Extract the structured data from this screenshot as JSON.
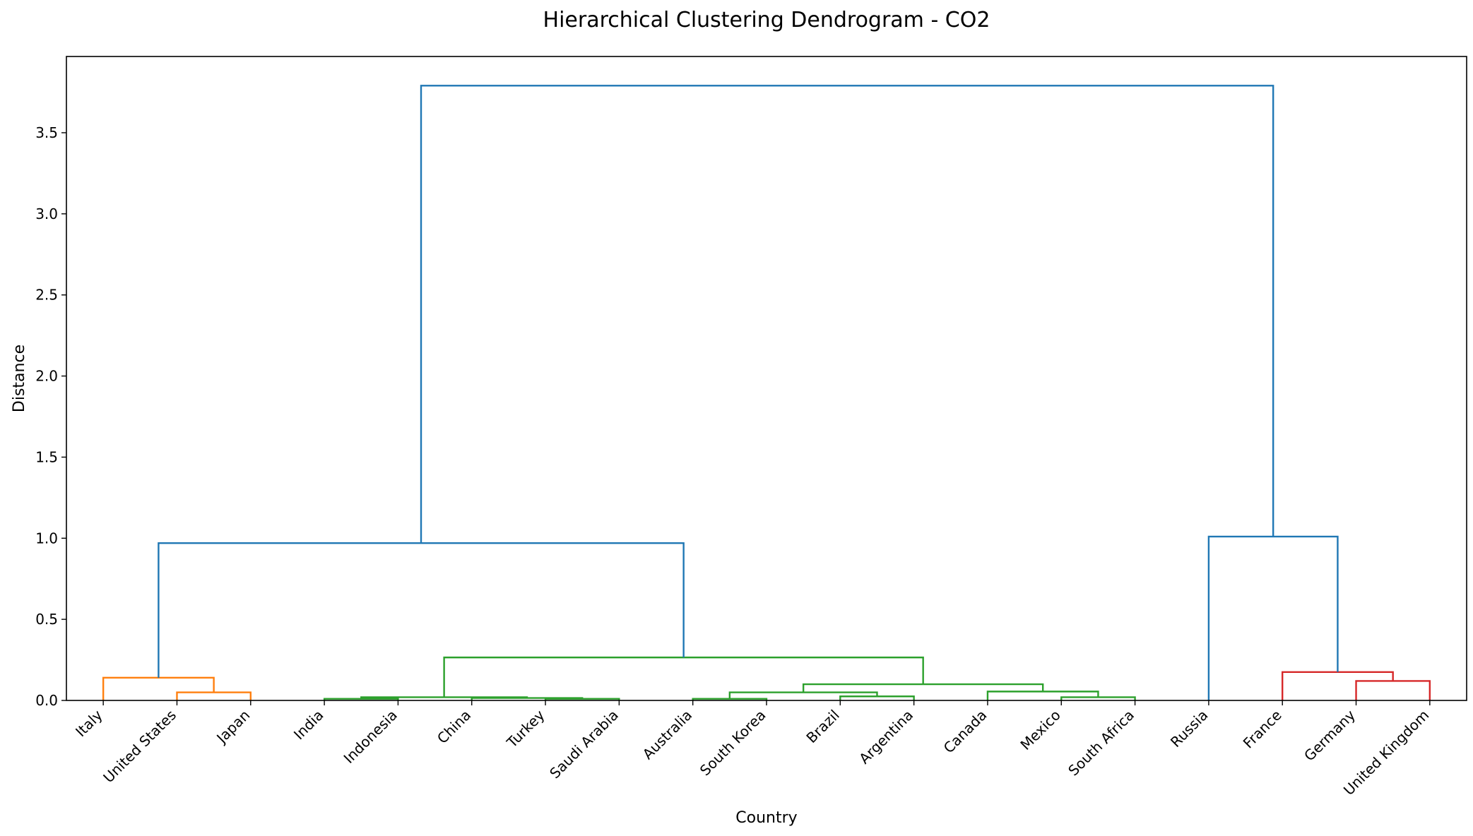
{
  "chart_data": {
    "type": "dendrogram",
    "title": "Hierarchical Clustering Dendrogram - CO2",
    "xlabel": "Country",
    "ylabel": "Distance",
    "ylim": [
      0,
      3.97
    ],
    "yticks": [
      "0.0",
      "0.5",
      "1.0",
      "1.5",
      "2.0",
      "2.5",
      "3.0",
      "3.5"
    ],
    "leaves": [
      "Italy",
      "United States",
      "Japan",
      "India",
      "Indonesia",
      "China",
      "Turkey",
      "Saudi Arabia",
      "Australia",
      "South Korea",
      "Brazil",
      "Argentina",
      "Canada",
      "Mexico",
      "South Africa",
      "Russia",
      "France",
      "Germany",
      "United Kingdom"
    ],
    "colors": {
      "orange": "#ff7f0e",
      "green": "#2ca02c",
      "red": "#d62728",
      "blue": "#1f77b4"
    },
    "merges": [
      {
        "left": "leaf:United States",
        "right": "leaf:Japan",
        "height": 0.05,
        "color": "orange"
      },
      {
        "left": "leaf:Italy",
        "right": "m0",
        "height": 0.14,
        "color": "orange"
      },
      {
        "left": "leaf:India",
        "right": "leaf:Indonesia",
        "height": 0.01,
        "color": "green"
      },
      {
        "left": "leaf:Turkey",
        "right": "leaf:Saudi Arabia",
        "height": 0.01,
        "color": "green"
      },
      {
        "left": "leaf:China",
        "right": "m3",
        "height": 0.015,
        "color": "green"
      },
      {
        "left": "m2",
        "right": "m4",
        "height": 0.02,
        "color": "green"
      },
      {
        "left": "leaf:Australia",
        "right": "leaf:South Korea",
        "height": 0.01,
        "color": "green"
      },
      {
        "left": "leaf:Brazil",
        "right": "leaf:Argentina",
        "height": 0.025,
        "color": "green"
      },
      {
        "left": "m6",
        "right": "m7",
        "height": 0.05,
        "color": "green"
      },
      {
        "left": "leaf:Mexico",
        "right": "leaf:South Africa",
        "height": 0.02,
        "color": "green"
      },
      {
        "left": "leaf:Canada",
        "right": "m9",
        "height": 0.055,
        "color": "green"
      },
      {
        "left": "m8",
        "right": "m10",
        "height": 0.1,
        "color": "green"
      },
      {
        "left": "m5",
        "right": "m11",
        "height": 0.265,
        "color": "green"
      },
      {
        "left": "m1",
        "right": "m12",
        "height": 0.97,
        "color": "blue"
      },
      {
        "left": "leaf:Germany",
        "right": "leaf:United Kingdom",
        "height": 0.12,
        "color": "red"
      },
      {
        "left": "leaf:France",
        "right": "m14",
        "height": 0.175,
        "color": "red"
      },
      {
        "left": "leaf:Russia",
        "right": "m15",
        "height": 1.01,
        "color": "blue"
      },
      {
        "left": "m13",
        "right": "m16",
        "height": 3.79,
        "color": "blue"
      }
    ]
  }
}
